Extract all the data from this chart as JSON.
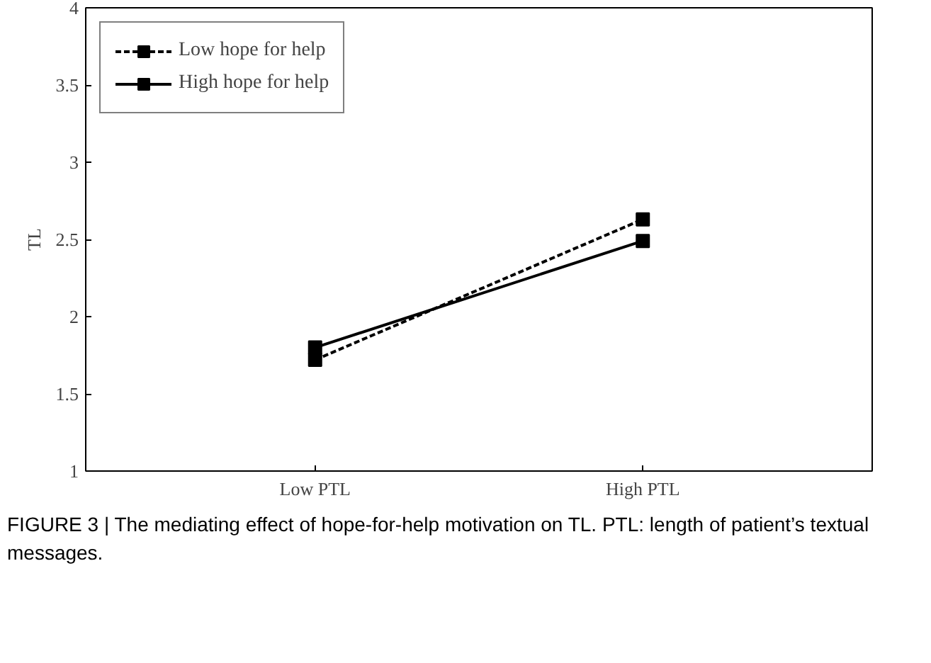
{
  "chart_data": {
    "type": "line",
    "categories": [
      "Low PTL",
      "High PTL"
    ],
    "ylabel": "TL",
    "ylim": [
      1,
      4
    ],
    "yticks": [
      1,
      1.5,
      2,
      2.5,
      3,
      3.5,
      4
    ],
    "series": [
      {
        "name": "Low hope for help",
        "color": "#000000",
        "values": [
          1.72,
          2.63
        ],
        "line_style": "dashed"
      },
      {
        "name": "High hope for help",
        "color": "#000000",
        "values": [
          1.8,
          2.49
        ],
        "line_style": "solid"
      }
    ],
    "marker": "square",
    "legend": "top left",
    "grid": false,
    "annotations": [
      "FIGURE 3 | The mediating effect of hope-for-help motivation on TL. PTL: length of patient’s textual messages."
    ]
  }
}
